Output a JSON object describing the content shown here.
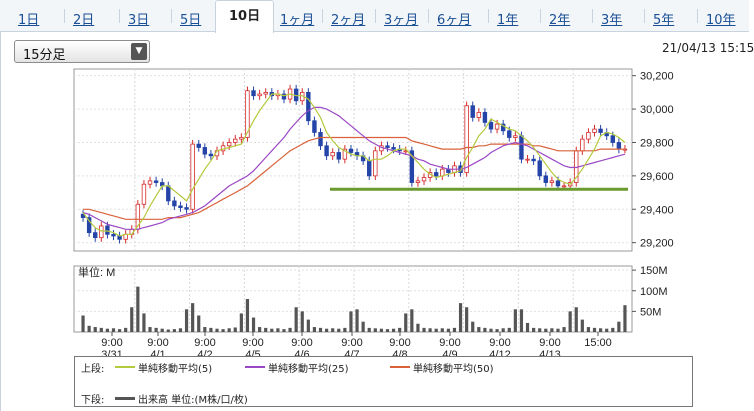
{
  "tabs": [
    {
      "label": "1日",
      "active": false
    },
    {
      "label": "2日",
      "active": false
    },
    {
      "label": "3日",
      "active": false
    },
    {
      "label": "5日",
      "active": false
    },
    {
      "label": "10日",
      "active": true
    },
    {
      "label": "1ヶ月",
      "active": false
    },
    {
      "label": "2ヶ月",
      "active": false
    },
    {
      "label": "3ヶ月",
      "active": false
    },
    {
      "label": "6ヶ月",
      "active": false
    },
    {
      "label": "1年",
      "active": false
    },
    {
      "label": "2年",
      "active": false
    },
    {
      "label": "3年",
      "active": false
    },
    {
      "label": "5年",
      "active": false
    },
    {
      "label": "10年",
      "active": false
    }
  ],
  "interval_select": {
    "value": "15分足"
  },
  "timestamp": "21/04/13 15:15",
  "chart_data": {
    "type": "line",
    "price_axis": {
      "ticks": [
        "30,200",
        "30,000",
        "29,800",
        "29,600",
        "29,400",
        "29,200"
      ]
    },
    "volume_axis": {
      "label": "単位: M",
      "ticks": [
        "150M",
        "100M",
        "50M"
      ]
    },
    "x_ticks": [
      {
        "time": "9:00",
        "date": "3/31"
      },
      {
        "time": "9:00",
        "date": "4/1"
      },
      {
        "time": "9:00",
        "date": "4/2"
      },
      {
        "time": "9:00",
        "date": "4/5"
      },
      {
        "time": "9:00",
        "date": "4/6"
      },
      {
        "time": "9:00",
        "date": "4/7"
      },
      {
        "time": "9:00",
        "date": "4/8"
      },
      {
        "time": "9:00",
        "date": "4/9"
      },
      {
        "time": "9:00",
        "date": "4/12"
      },
      {
        "time": "9:00",
        "date": "4/13"
      },
      {
        "time": "15:00",
        "date": ""
      }
    ],
    "price_close": [
      29350,
      29260,
      29230,
      29300,
      29250,
      29240,
      29220,
      29250,
      29280,
      29430,
      29550,
      29570,
      29560,
      29540,
      29450,
      29420,
      29410,
      29400,
      29790,
      29770,
      29730,
      29720,
      29750,
      29780,
      29800,
      29820,
      29830,
      30110,
      30080,
      30090,
      30100,
      30080,
      30090,
      30060,
      30120,
      30050,
      30100,
      29930,
      29860,
      29780,
      29720,
      29740,
      29700,
      29760,
      29740,
      29720,
      29690,
      29600,
      29750,
      29780,
      29770,
      29760,
      29750,
      29750,
      29560,
      29570,
      29590,
      29620,
      29600,
      29640,
      29620,
      29660,
      29620,
      30020,
      29950,
      29980,
      29920,
      29880,
      29910,
      29870,
      29830,
      29840,
      29700,
      29700,
      29690,
      29600,
      29560,
      29570,
      29540,
      29540,
      29560,
      29750,
      29820,
      29860,
      29880,
      29860,
      29840,
      29800,
      29760,
      29760
    ],
    "ma5": [
      29380,
      29330,
      29290,
      29270,
      29270,
      29260,
      29240,
      29250,
      29250,
      29300,
      29350,
      29420,
      29480,
      29540,
      29540,
      29510,
      29480,
      29450,
      29520,
      29580,
      29640,
      29690,
      29750,
      29760,
      29770,
      29780,
      29790,
      29860,
      29930,
      29990,
      30040,
      30090,
      30090,
      30080,
      30090,
      30080,
      30080,
      30060,
      30010,
      29950,
      29860,
      29810,
      29770,
      29750,
      29730,
      29720,
      29720,
      29690,
      29700,
      29700,
      29720,
      29750,
      29760,
      29760,
      29720,
      29680,
      29640,
      29610,
      29590,
      29600,
      29610,
      29620,
      29630,
      29710,
      29770,
      29840,
      29880,
      29940,
      29920,
      29900,
      29880,
      29870,
      29840,
      29810,
      29770,
      29720,
      29670,
      29620,
      29580,
      29560,
      29550,
      29590,
      29640,
      29700,
      29760,
      29840,
      29860,
      29850,
      29830,
      29800
    ],
    "ma25": [
      29380,
      29370,
      29350,
      29330,
      29310,
      29300,
      29290,
      29280,
      29280,
      29280,
      29290,
      29300,
      29310,
      29320,
      29340,
      29350,
      29360,
      29370,
      29380,
      29400,
      29420,
      29450,
      29480,
      29510,
      29540,
      29560,
      29580,
      29600,
      29630,
      29670,
      29710,
      29750,
      29790,
      29830,
      29880,
      29920,
      29960,
      29990,
      30010,
      30010,
      30000,
      29980,
      29960,
      29930,
      29900,
      29870,
      29840,
      29810,
      29790,
      29770,
      29760,
      29750,
      29740,
      29730,
      29720,
      29700,
      29690,
      29670,
      29660,
      29650,
      29640,
      29640,
      29640,
      29650,
      29670,
      29690,
      29710,
      29740,
      29760,
      29780,
      29790,
      29800,
      29790,
      29780,
      29760,
      29740,
      29720,
      29700,
      29680,
      29660,
      29650,
      29650,
      29660,
      29670,
      29680,
      29690,
      29700,
      29710,
      29720,
      29730
    ],
    "ma50": [
      29400,
      29400,
      29390,
      29380,
      29370,
      29360,
      29350,
      29340,
      29340,
      29340,
      29340,
      29340,
      29340,
      29340,
      29350,
      29350,
      29350,
      29360,
      29370,
      29380,
      29400,
      29420,
      29440,
      29460,
      29480,
      29500,
      29520,
      29540,
      29570,
      29600,
      29630,
      29660,
      29690,
      29720,
      29750,
      29770,
      29790,
      29810,
      29820,
      29830,
      29830,
      29830,
      29830,
      29830,
      29830,
      29830,
      29830,
      29830,
      29830,
      29830,
      29830,
      29830,
      29830,
      29830,
      29810,
      29800,
      29790,
      29780,
      29770,
      29760,
      29760,
      29760,
      29760,
      29770,
      29770,
      29780,
      29780,
      29790,
      29790,
      29790,
      29790,
      29790,
      29790,
      29790,
      29780,
      29780,
      29770,
      29760,
      29750,
      29750,
      29750,
      29750,
      29750,
      29750,
      29750,
      29760,
      29760,
      29760,
      29760,
      29760
    ],
    "volume": [
      40,
      15,
      12,
      10,
      8,
      9,
      7,
      10,
      60,
      110,
      45,
      12,
      10,
      8,
      6,
      7,
      9,
      55,
      70,
      40,
      12,
      10,
      8,
      7,
      9,
      11,
      45,
      80,
      35,
      12,
      10,
      8,
      9,
      7,
      10,
      60,
      50,
      30,
      12,
      10,
      8,
      9,
      8,
      10,
      50,
      55,
      25,
      10,
      9,
      8,
      7,
      8,
      10,
      45,
      55,
      20,
      10,
      9,
      8,
      9,
      8,
      10,
      70,
      60,
      25,
      12,
      10,
      8,
      7,
      9,
      10,
      55,
      55,
      22,
      10,
      9,
      8,
      9,
      8,
      12,
      50,
      60,
      30,
      12,
      10,
      9,
      8,
      10,
      25,
      65
    ],
    "support_level": 29520,
    "price_ylim": [
      29150,
      30240
    ],
    "volume_ylim": [
      0,
      160
    ]
  },
  "legend": {
    "upper_label": "上段:",
    "lower_label": "下段:",
    "ma5": "単純移動平均(5)",
    "ma25": "単純移動平均(25)",
    "ma50": "単純移動平均(50)",
    "volume": "出来高 単位:(M株/口/枚)",
    "colors": {
      "ma5": "#b5c93c",
      "ma25": "#9b48c4",
      "ma50": "#d9623a",
      "up": "#d62b2b",
      "down": "#2444a8",
      "support": "#6b9a2e",
      "volume": "#555555"
    }
  }
}
